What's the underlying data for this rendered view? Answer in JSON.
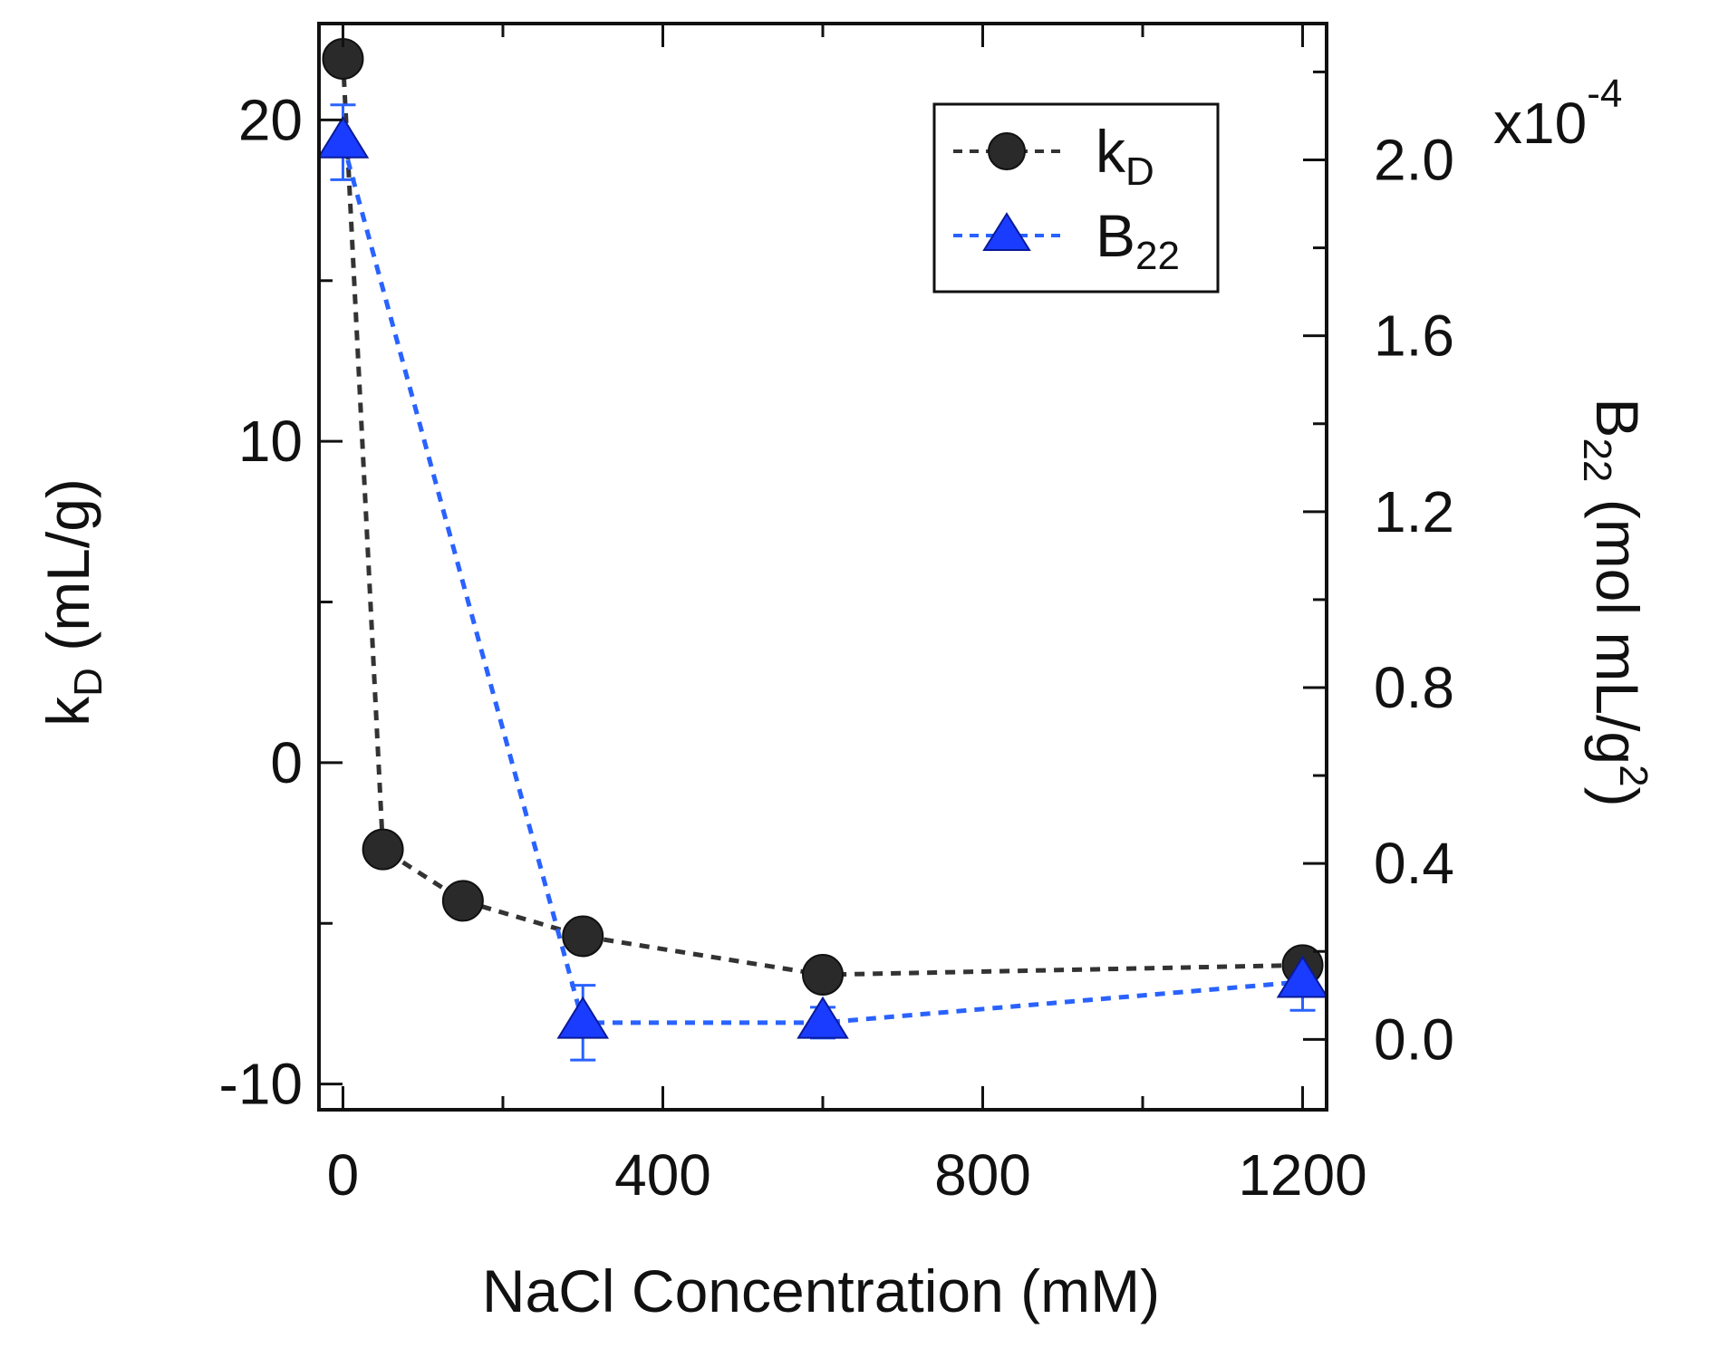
{
  "chart_data": {
    "type": "line",
    "xlabel": "NaCl Concentration (mM)",
    "xlim": [
      -30,
      1230
    ],
    "xticks": [
      0,
      400,
      800,
      1200
    ],
    "x_minor_ticks": [
      200,
      600,
      1000
    ],
    "left_axis": {
      "label_main": "k",
      "label_sub": "D",
      "label_rest": " (mL/g)",
      "ylim": [
        -10.8,
        23
      ],
      "ticks": [
        -10,
        0,
        10,
        20
      ],
      "minor_ticks": [
        -5,
        5,
        15
      ]
    },
    "right_axis": {
      "label_main": "B",
      "label_sub": "22",
      "label_rest": " (mol mL/g",
      "label_sup": "2",
      "label_end": ")",
      "ylim": [
        -1.6e-05,
        0.000231
      ],
      "ticks": [
        0.0,
        0.4,
        0.8,
        1.2,
        1.6,
        2.0
      ],
      "tick_labels": [
        "0.0",
        "0.4",
        "0.8",
        "1.2",
        "1.6",
        "2.0"
      ],
      "minor_ticks": [
        0.2,
        0.6,
        1.0,
        1.4,
        1.8,
        2.2
      ],
      "multiplier_prefix": "x10",
      "multiplier_exponent": "-4"
    },
    "series": [
      {
        "name": "kD",
        "legend_main": "k",
        "legend_sub": "D",
        "axis": "left",
        "marker": "circle",
        "color": "#333333",
        "line_color": "#333333",
        "x": [
          0,
          50,
          150,
          300,
          600,
          1200
        ],
        "y": [
          21.9,
          -2.7,
          -4.3,
          -5.4,
          -6.6,
          -6.3
        ]
      },
      {
        "name": "B22",
        "legend_main": "B",
        "legend_sub": "22",
        "axis": "right",
        "marker": "triangle",
        "color": "#1a3cff",
        "line_color": "#2962ff",
        "x": [
          0,
          300,
          600,
          1200
        ],
        "y": [
          0.000204,
          3.8e-06,
          3.8e-06,
          1.31e-05
        ],
        "err": [
          8.5e-06,
          8.5e-06,
          3.5e-06,
          6.5e-06
        ]
      }
    ],
    "legend_position": "top-right"
  }
}
